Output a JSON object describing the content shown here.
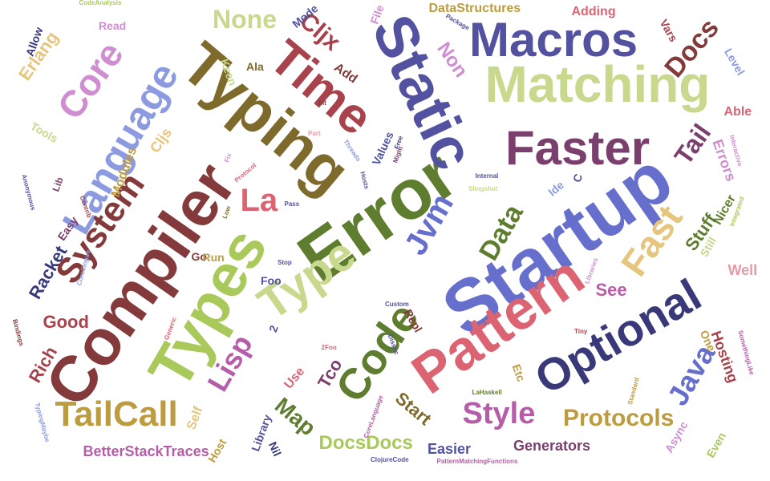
{
  "palette": {
    "navy": "#39397a",
    "purple": "#5252a0",
    "blue": "#6670cc",
    "periwinkle": "#8c9be0",
    "olive_green": "#5f7d2f",
    "lime": "#a9c95a",
    "sage": "#c8d88c",
    "brown": "#7e6a2a",
    "gold": "#bd9c3f",
    "sand": "#e6c57c",
    "maroon": "#843a3a",
    "red": "#a8434d",
    "rose": "#dc6372",
    "pink": "#e79aa6",
    "plum": "#7b3f6d",
    "magenta": "#b55da8",
    "orchid": "#cf8ed1"
  },
  "words": [
    {
      "text": "Startup",
      "color": "blue"
    },
    {
      "text": "Error",
      "color": "olive_green"
    },
    {
      "text": "Static",
      "color": "purple"
    },
    {
      "text": "Typing",
      "color": "brown"
    },
    {
      "text": "Compiler",
      "color": "maroon"
    },
    {
      "text": "Matching",
      "color": "sage"
    },
    {
      "text": "Types",
      "color": "lime"
    },
    {
      "text": "Pattern",
      "color": "rose"
    },
    {
      "text": "Optional",
      "color": "navy"
    },
    {
      "text": "Faster",
      "color": "plum"
    },
    {
      "text": "Macros",
      "color": "purple"
    },
    {
      "text": "Time",
      "color": "red"
    },
    {
      "text": "Language",
      "color": "periwinkle"
    },
    {
      "text": "Type",
      "color": "sage"
    },
    {
      "text": "Code",
      "color": "olive_green"
    },
    {
      "text": "Core",
      "color": "orchid"
    },
    {
      "text": "System",
      "color": "maroon"
    },
    {
      "text": "Fast",
      "color": "sand"
    },
    {
      "text": "TailCall",
      "color": "gold"
    },
    {
      "text": "Java",
      "color": "blue"
    },
    {
      "text": "Style",
      "color": "magenta"
    },
    {
      "text": "Lisp",
      "color": "magenta"
    },
    {
      "text": "Jvm",
      "color": "blue"
    },
    {
      "text": "Tail",
      "color": "plum"
    },
    {
      "text": "Docs",
      "color": "maroon"
    },
    {
      "text": "Protocols",
      "color": "gold"
    },
    {
      "text": "Data",
      "color": "olive_green"
    },
    {
      "text": "La",
      "color": "rose"
    },
    {
      "text": "None",
      "color": "sage"
    },
    {
      "text": "Cljx",
      "color": "red"
    },
    {
      "text": "Non",
      "color": "orchid"
    },
    {
      "text": "Map",
      "color": "olive_green"
    },
    {
      "text": "Racket",
      "color": "navy"
    },
    {
      "text": "Rich",
      "color": "red"
    },
    {
      "text": "Good",
      "color": "red"
    },
    {
      "text": "DocsDocs",
      "color": "lime"
    },
    {
      "text": "Start",
      "color": "brown"
    },
    {
      "text": "Tco",
      "color": "plum"
    },
    {
      "text": "Errors",
      "color": "orchid"
    },
    {
      "text": "See",
      "color": "magenta"
    },
    {
      "text": "Stuff",
      "color": "olive_green"
    },
    {
      "text": "Generators",
      "color": "plum"
    },
    {
      "text": "BetterStackTraces",
      "color": "magenta"
    },
    {
      "text": "DataStructures",
      "color": "gold"
    },
    {
      "text": "Erlang",
      "color": "sand"
    },
    {
      "text": "Cljs",
      "color": "sand"
    },
    {
      "text": "Hosting",
      "color": "red"
    },
    {
      "text": "Easier",
      "color": "purple"
    },
    {
      "text": "Nicer",
      "color": "olive_green"
    },
    {
      "text": "Well",
      "color": "pink"
    },
    {
      "text": "Adding",
      "color": "rose"
    },
    {
      "text": "Vars",
      "color": "red"
    },
    {
      "text": "Add",
      "color": "maroon"
    },
    {
      "text": "Level",
      "color": "periwinkle"
    },
    {
      "text": "Able",
      "color": "rose"
    },
    {
      "text": "Modules",
      "color": "gold"
    },
    {
      "text": "Values",
      "color": "purple"
    },
    {
      "text": "Use",
      "color": "rose"
    },
    {
      "text": "Self",
      "color": "sand"
    },
    {
      "text": "Library",
      "color": "purple"
    },
    {
      "text": "Host",
      "color": "gold"
    },
    {
      "text": "Async",
      "color": "orchid"
    },
    {
      "text": "Even",
      "color": "lime"
    },
    {
      "text": "Etc",
      "color": "gold"
    },
    {
      "text": "Ide",
      "color": "periwinkle"
    },
    {
      "text": "Keen",
      "color": "sage"
    },
    {
      "text": "Ala",
      "color": "brown"
    },
    {
      "text": "Mode",
      "color": "purple"
    },
    {
      "text": "Allow",
      "color": "navy"
    },
    {
      "text": "Read",
      "color": "orchid"
    },
    {
      "text": "File",
      "color": "orchid"
    },
    {
      "text": "Still",
      "color": "sage"
    },
    {
      "text": "Tools",
      "color": "sage"
    },
    {
      "text": "Easy",
      "color": "plum"
    },
    {
      "text": "Repl",
      "color": "maroon"
    },
    {
      "text": "One",
      "color": "gold"
    },
    {
      "text": "Foo",
      "color": "purple"
    },
    {
      "text": "Go",
      "color": "maroon"
    },
    {
      "text": "Run",
      "color": "gold"
    },
    {
      "text": "Nil",
      "color": "navy"
    },
    {
      "text": "Lib",
      "color": "plum"
    },
    {
      "text": "C",
      "color": "purple"
    },
    {
      "text": "2",
      "color": "purple"
    },
    {
      "text": "CodeAnalysis",
      "color": "lime"
    },
    {
      "text": "Package",
      "color": "purple"
    },
    {
      "text": "Anonymous",
      "color": "purple"
    },
    {
      "text": "Contrib",
      "color": "red"
    },
    {
      "text": "CoreClojure",
      "color": "periwinkle"
    },
    {
      "text": "Int",
      "color": "maroon"
    },
    {
      "text": "Part",
      "color": "pink"
    },
    {
      "text": "Threads",
      "color": "periwinkle"
    },
    {
      "text": "Protocol",
      "color": "rose"
    },
    {
      "text": "Fix",
      "color": "orchid"
    },
    {
      "text": "Hosts",
      "color": "purple"
    },
    {
      "text": "Might",
      "color": "plum"
    },
    {
      "text": "Free",
      "color": "navy"
    },
    {
      "text": "Internal",
      "color": "purple"
    },
    {
      "text": "Slingshot",
      "color": "sage"
    },
    {
      "text": "Low",
      "color": "brown"
    },
    {
      "text": "Pass",
      "color": "purple"
    },
    {
      "text": "Stop",
      "color": "purple"
    },
    {
      "text": "Interactive",
      "color": "orchid"
    },
    {
      "text": "Integrated",
      "color": "lime"
    },
    {
      "text": "Libraries",
      "color": "orchid"
    },
    {
      "text": "Custom",
      "color": "purple"
    },
    {
      "text": "Bindings",
      "color": "maroon"
    },
    {
      "text": "Generic",
      "color": "rose"
    },
    {
      "text": "2Foo",
      "color": "rose"
    },
    {
      "text": "Dissoc",
      "color": "purple"
    },
    {
      "text": "LaHaskell",
      "color": "olive_green"
    },
    {
      "text": "CoreLanguage",
      "color": "magenta"
    },
    {
      "text": "TypingMaybe",
      "color": "periwinkle"
    },
    {
      "text": "ClojureCode",
      "color": "purple"
    },
    {
      "text": "PatternMatchingFunctions",
      "color": "magenta"
    },
    {
      "text": "Standard",
      "color": "gold"
    },
    {
      "text": "SomethingLike",
      "color": "magenta"
    },
    {
      "text": "Tiny",
      "color": "red"
    }
  ]
}
